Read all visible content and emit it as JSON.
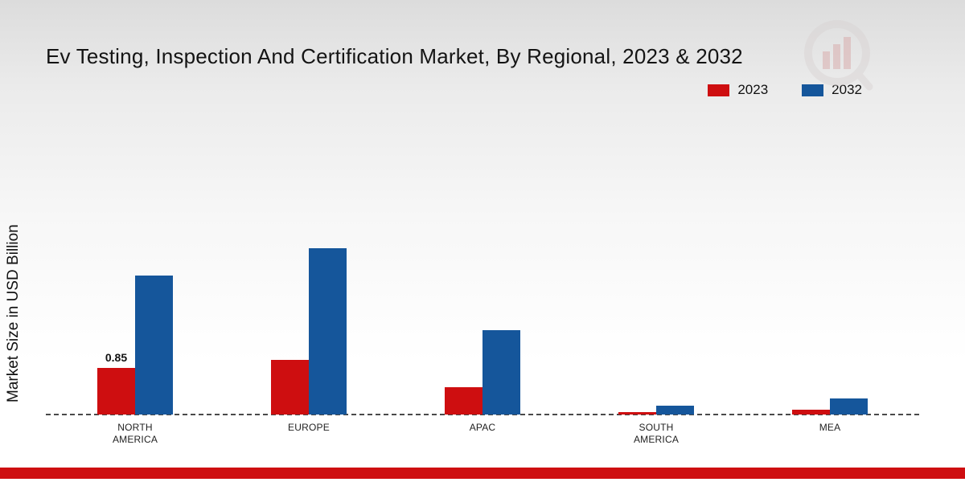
{
  "page": {
    "title": "Ev Testing, Inspection And Certification Market, By Regional, 2023 & 2032",
    "ylabel": "Market Size in USD Billion"
  },
  "colors": {
    "series_2023": "#ce0e10",
    "series_2032": "#15569b",
    "footer": "#ce0e10",
    "axis": "#4a4a4a"
  },
  "legend": {
    "items": [
      {
        "label": "2023",
        "color": "#ce0e10"
      },
      {
        "label": "2032",
        "color": "#15569b"
      }
    ]
  },
  "chart_data": {
    "type": "bar",
    "title": "Ev Testing, Inspection And Certification Market, By Regional, 2023 & 2032",
    "xlabel": "",
    "ylabel": "Market Size in USD Billion",
    "categories": [
      "NORTH AMERICA",
      "EUROPE",
      "APAC",
      "SOUTH AMERICA",
      "MEA"
    ],
    "series": [
      {
        "name": "2023",
        "color": "#ce0e10",
        "values": [
          0.85,
          1.0,
          0.5,
          0.04,
          0.09
        ]
      },
      {
        "name": "2032",
        "color": "#15569b",
        "values": [
          2.55,
          3.05,
          1.55,
          0.16,
          0.3
        ]
      }
    ],
    "data_labels": [
      {
        "category": 0,
        "series": 0,
        "text": "0.85"
      }
    ],
    "ylim": [
      0,
      3.5
    ],
    "grid": false,
    "legend_position": "top-right",
    "baseline_style": "dashed"
  }
}
